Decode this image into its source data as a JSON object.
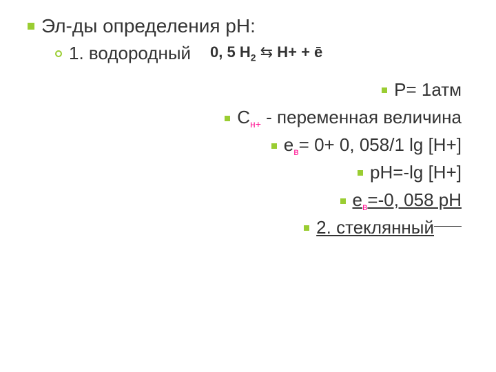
{
  "title": "Эл-ды определения рН:",
  "line2_item": "1.  водородный",
  "line2_formula_a": "0, 5 Н",
  "line2_formula_sub": "2",
  "line2_formula_arrows": " ⇆ ",
  "line2_formula_b": "Н+ + ",
  "line2_formula_e": "ē",
  "line3": "Р= 1атм",
  "line4_a": "С",
  "line4_sub": "н+",
  "line4_b": " - переменная величина",
  "line5_a": "е",
  "line5_sub": "в",
  "line5_b": "= 0+ 0, 058/1 lg [H+]",
  "line6": "рН=-lg [H+]",
  "line7_a": "е",
  "line7_sub": "в",
  "line7_b": "=-0, 058 рН",
  "line8": "2. стеклянный",
  "colors": {
    "bullet": "#9acd32",
    "text": "#333333",
    "subscript": "#ff1493",
    "background": "#ffffff"
  }
}
